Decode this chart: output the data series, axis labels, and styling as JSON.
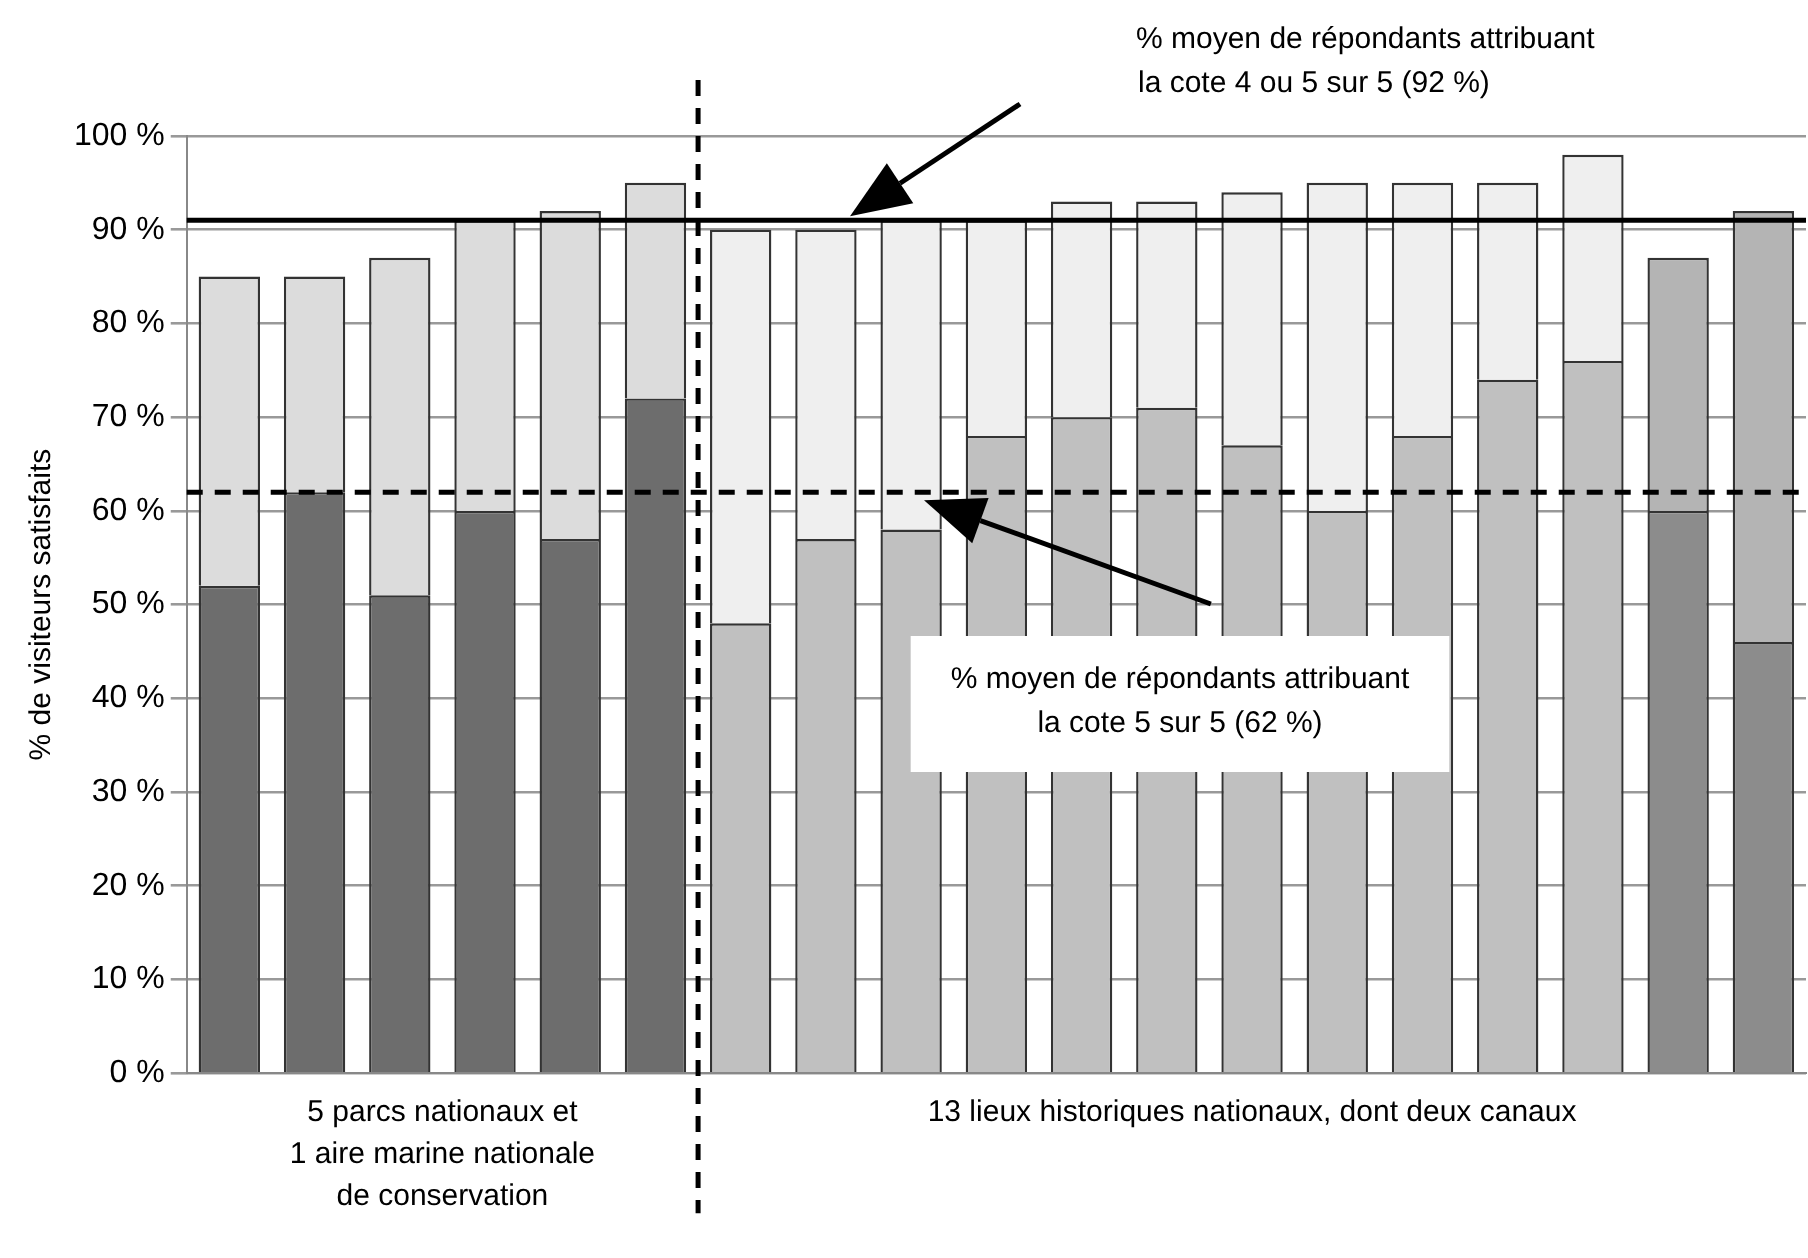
{
  "chart_data": {
    "type": "bar",
    "stacked": true,
    "ylabel": "% de visiteurs satisfaits",
    "categories": [
      null,
      null,
      null,
      null,
      null,
      null,
      null,
      null,
      null,
      null,
      null,
      null,
      null,
      null,
      null,
      null,
      null,
      null,
      null
    ],
    "series": [
      {
        "colors": [
          "#6d6d6d",
          "#6d6d6d",
          "#6d6d6d",
          "#6d6d6d",
          "#6d6d6d",
          "#6d6d6d",
          "#c0c0c0",
          "#c0c0c0",
          "#c0c0c0",
          "#c0c0c0",
          "#c0c0c0",
          "#c0c0c0",
          "#c0c0c0",
          "#c0c0c0",
          "#c0c0c0",
          "#c0c0c0",
          "#c0c0c0",
          "#8c8c8c",
          "#8c8c8c"
        ],
        "values": [
          52,
          62,
          51,
          60,
          57,
          72,
          48,
          57,
          58,
          68,
          70,
          71,
          67,
          60,
          68,
          74,
          76,
          60,
          46
        ]
      },
      {
        "colors": [
          "#dcdcdc",
          "#dcdcdc",
          "#dcdcdc",
          "#dcdcdc",
          "#dcdcdc",
          "#dcdcdc",
          "#efefef",
          "#efefef",
          "#efefef",
          "#efefef",
          "#efefef",
          "#efefef",
          "#efefef",
          "#efefef",
          "#efefef",
          "#efefef",
          "#efefef",
          "#b4b4b4",
          "#b4b4b4"
        ],
        "values": [
          33,
          23,
          36,
          31,
          35,
          23,
          42,
          33,
          33,
          23,
          23,
          22,
          27,
          35,
          27,
          21,
          22,
          27,
          46
        ]
      }
    ],
    "ylim": [
      0,
      100
    ],
    "yticks": [
      {
        "value": 0,
        "label": "0 %"
      },
      {
        "value": 10,
        "label": "10 %"
      },
      {
        "value": 20,
        "label": "20 %"
      },
      {
        "value": 30,
        "label": "30 %"
      },
      {
        "value": 40,
        "label": "40 %"
      },
      {
        "value": 50,
        "label": "50 %"
      },
      {
        "value": 60,
        "label": "60 %"
      },
      {
        "value": 70,
        "label": "70 %"
      },
      {
        "value": 80,
        "label": "80 %"
      },
      {
        "value": 90,
        "label": "90 %"
      },
      {
        "value": 100,
        "label": "100 %"
      }
    ],
    "grid": "y",
    "legend": false,
    "ref_lines": [
      {
        "axis": "y",
        "value": 91,
        "line_style": "solid",
        "color": "#000000"
      },
      {
        "axis": "y",
        "value": 62,
        "line_style": "dashed",
        "color": "#000000"
      }
    ],
    "annotations": [
      "% moyen de répondants attribuant\nla cote 4 ou 5 sur 5 (92 %)",
      "% moyen de répondants attribuant\nla cote 5 sur 5 (62 %)",
      "5 parcs nationaux et\n1 aire marine nationale\nde conservation",
      "13 lieux historiques nationaux, dont deux canaux"
    ]
  }
}
